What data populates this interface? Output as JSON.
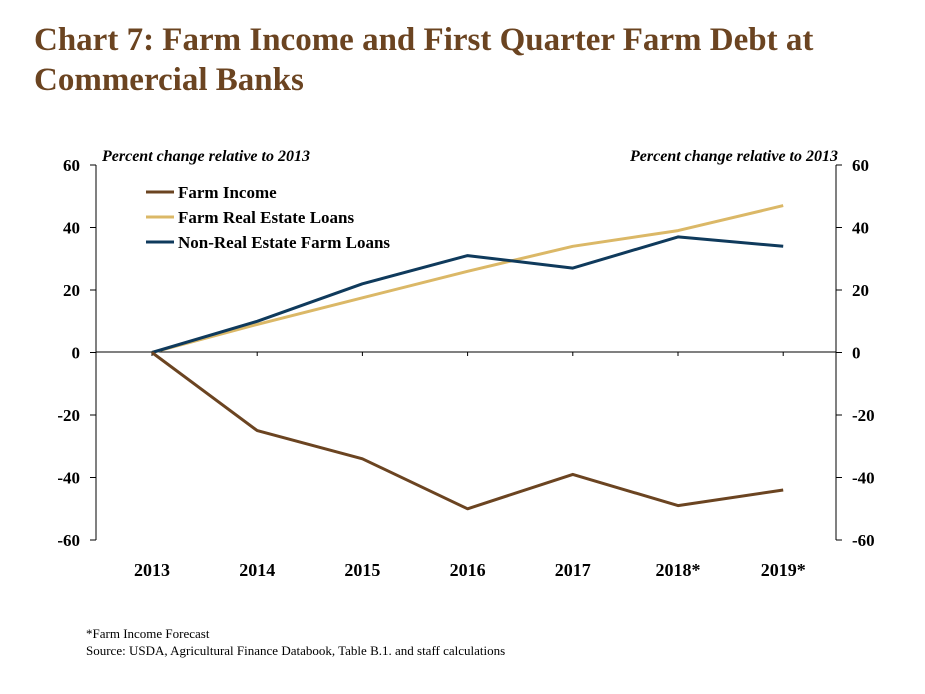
{
  "title": "Chart 7: Farm Income and First Quarter Farm Debt at Commercial Banks",
  "footnotes": {
    "forecast": "*Farm Income Forecast",
    "source": "Source: USDA, Agricultural Finance Databook, Table B.1. and staff calculations"
  },
  "colors": {
    "title": "#6b4421",
    "farm_income": "#6b4421",
    "farm_real_estate": "#dbb867",
    "non_real_estate": "#0f3a5c"
  },
  "chart_data": {
    "type": "line",
    "categories": [
      "2013",
      "2014",
      "2015",
      "2016",
      "2017",
      "2018*",
      "2019*"
    ],
    "series": [
      {
        "name": "Farm Income",
        "color": "#6b4421",
        "values": [
          0,
          -25,
          -34,
          -50,
          -39,
          -49,
          -44
        ]
      },
      {
        "name": "Farm Real Estate Loans",
        "color": "#dbb867",
        "values": [
          0,
          9,
          17.5,
          26,
          34,
          39,
          47
        ]
      },
      {
        "name": "Non-Real Estate Farm Loans",
        "color": "#0f3a5c",
        "values": [
          0,
          10,
          22,
          31,
          27,
          37,
          34
        ]
      }
    ],
    "ylabel": "Percent change relative to 2013",
    "ylabel_right": "Percent change relative to 2013",
    "ylim": [
      -60,
      60
    ],
    "yticks": [
      60,
      40,
      20,
      0,
      -20,
      -40,
      -60
    ],
    "legend_position": "top-left",
    "grid": false
  }
}
